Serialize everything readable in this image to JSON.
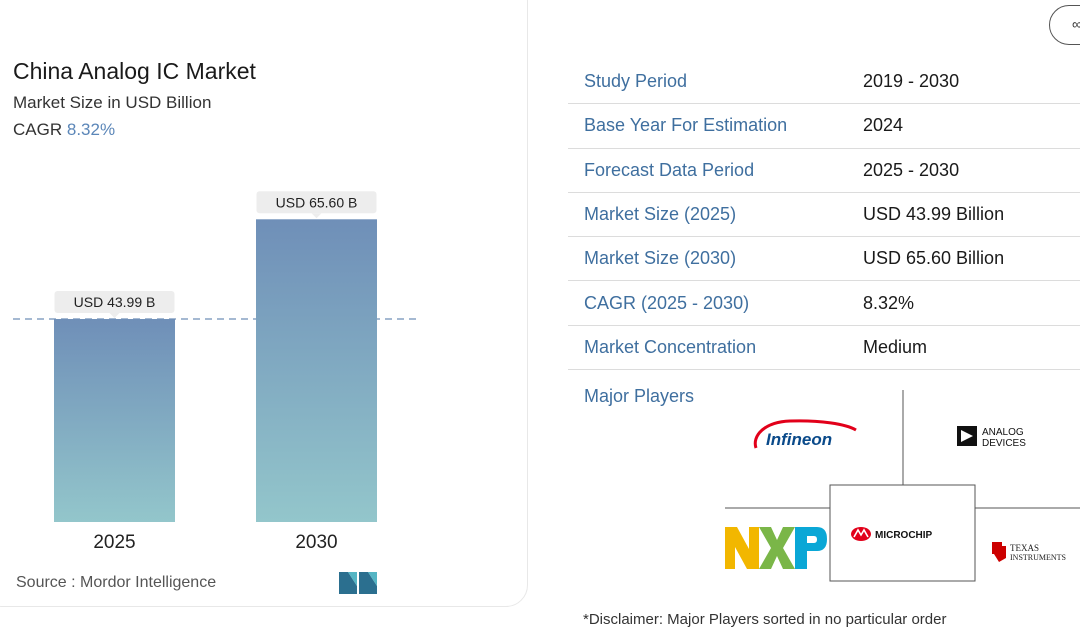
{
  "chart": {
    "title": "China Analog IC Market",
    "subtitle": "Market Size in USD Billion",
    "cagr_label": "CAGR",
    "cagr_value": "8.32%",
    "source": "Source :  Mordor Intelligence"
  },
  "chart_data": {
    "type": "bar",
    "categories": [
      "2025",
      "2030"
    ],
    "values": [
      43.99,
      65.6
    ],
    "value_labels": [
      "USD 43.99 B",
      "USD 65.60 B"
    ],
    "title": "China Analog IC Market",
    "subtitle": "Market Size in USD Billion",
    "ylim": [
      0,
      70
    ],
    "grid": false,
    "reference_line": "dashed line at 2025 value",
    "colors": {
      "bar_top": "#6f8fb8",
      "bar_bottom": "#93c6cb"
    }
  },
  "share_button": {
    "label": "∞"
  },
  "info_rows": [
    {
      "key": "Study Period",
      "value": "2019 - 2030"
    },
    {
      "key": "Base Year For Estimation",
      "value": "2024"
    },
    {
      "key": "Forecast Data Period",
      "value": "2025 - 2030"
    },
    {
      "key": "Market Size (2025)",
      "value": "USD 43.99 Billion"
    },
    {
      "key": "Market Size (2030)",
      "value": "USD 65.60 Billion"
    },
    {
      "key": "CAGR (2025 - 2030)",
      "value": "8.32%"
    },
    {
      "key": "Market Concentration",
      "value": "Medium"
    }
  ],
  "players": {
    "label": "Major Players",
    "logos": [
      {
        "name": "infineon-logo",
        "text": "Infineon"
      },
      {
        "name": "analog-devices-logo",
        "text": "ANALOG DEVICES"
      },
      {
        "name": "nxp-logo",
        "text": "NXP"
      },
      {
        "name": "microchip-logo",
        "text": "MICROCHIP"
      },
      {
        "name": "texas-instruments-logo",
        "text": "TEXAS INSTRUMENTS"
      }
    ]
  },
  "disclaimer": "*Disclaimer: Major Players sorted in no particular order"
}
